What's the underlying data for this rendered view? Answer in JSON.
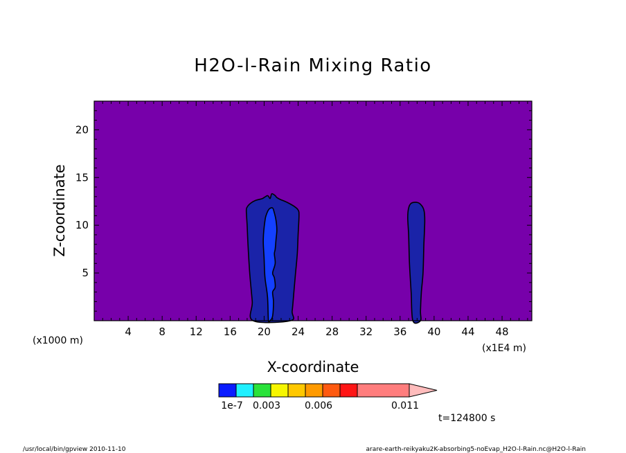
{
  "chart_data": {
    "type": "contour",
    "title": "H2O-l-Rain Mixing Ratio",
    "xlabel": "X-coordinate",
    "ylabel": "Z-coordinate",
    "x_unit_left": "(x1000 m)",
    "x_unit_right": "(x1E4 m)",
    "xlim": [
      0,
      51.5
    ],
    "ylim": [
      0,
      23
    ],
    "xticks": [
      4,
      8,
      12,
      16,
      20,
      24,
      28,
      32,
      36,
      40,
      44,
      48
    ],
    "yticks": [
      5,
      10,
      15,
      20
    ],
    "background_color": "#7700aa",
    "contour_levels": [
      {
        "name": "cell-1-outer",
        "color": "#1a23a8",
        "x": [
          18.7,
          18.6,
          18.3,
          18.1,
          18.0,
          17.9,
          18.0,
          18.4,
          19.0,
          19.8,
          20.4,
          20.7,
          20.9,
          21.3,
          21.5,
          21.9,
          22.7,
          23.5,
          24.0,
          24.1,
          24.0,
          23.9,
          23.7,
          23.5,
          23.3,
          23.1
        ],
        "z": [
          0.0,
          2.0,
          5.0,
          8.0,
          10.0,
          11.5,
          11.9,
          12.3,
          12.6,
          12.8,
          13.1,
          12.8,
          13.3,
          13.1,
          12.9,
          12.7,
          12.4,
          12.0,
          11.6,
          11.0,
          9.0,
          7.0,
          5.0,
          3.0,
          1.0,
          0.0
        ]
      },
      {
        "name": "cell-1-core",
        "color": "#1440ff",
        "x": [
          20.5,
          20.4,
          20.1,
          20.0,
          19.9,
          20.1,
          20.3,
          20.6,
          21.0,
          21.2,
          21.4,
          21.5,
          21.4,
          21.3,
          21.2,
          21.3,
          21.0,
          21.2,
          21.3,
          21.0,
          21.1,
          21.0,
          20.7
        ],
        "z": [
          0.0,
          2.5,
          4.5,
          6.5,
          8.5,
          10.5,
          11.2,
          11.7,
          11.8,
          11.3,
          10.5,
          9.5,
          8.5,
          7.5,
          7.0,
          6.0,
          5.0,
          4.5,
          3.5,
          3.0,
          2.0,
          0.5,
          0.0
        ]
      },
      {
        "name": "cell-2",
        "color": "#1a23a8",
        "x": [
          37.5,
          37.3,
          37.1,
          37.0,
          36.9,
          37.0,
          37.3,
          37.9,
          38.4,
          38.8,
          38.9,
          38.8,
          38.7,
          38.5,
          38.4,
          38.4
        ],
        "z": [
          0.0,
          3.0,
          6.0,
          9.0,
          10.8,
          11.8,
          12.3,
          12.4,
          12.2,
          11.6,
          10.5,
          8.0,
          5.0,
          3.0,
          1.0,
          0.0
        ]
      }
    ],
    "colorbar": {
      "colors": [
        "#0a1cff",
        "#1ff0ff",
        "#2ae23a",
        "#f6f600",
        "#ffc800",
        "#ff9a00",
        "#ff5a10",
        "#ff1515",
        "#ff7d7d",
        "#ffbcbc"
      ],
      "labels": [
        "1e-7",
        "0.003",
        "0.006",
        "0.011"
      ]
    },
    "time_label": "t=124800 s"
  },
  "footer": {
    "left": "/usr/local/bin/gpview  2010-11-10",
    "right": "arare-earth-reikyaku2K-absorbing5-noEvap_H2O-l-Rain.nc@H2O-l-Rain"
  }
}
